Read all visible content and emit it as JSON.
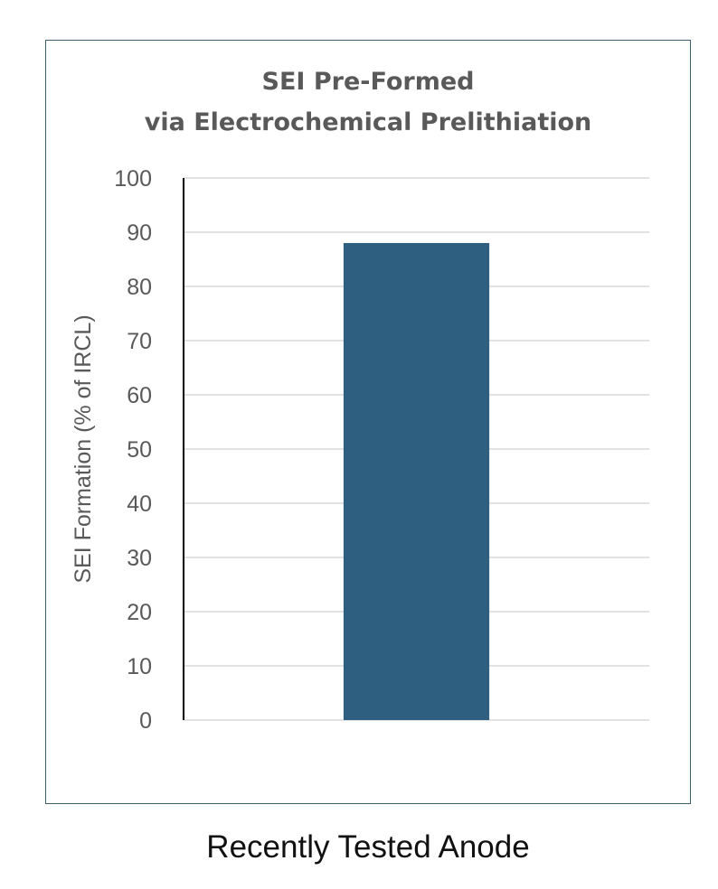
{
  "chart_data": {
    "type": "bar",
    "title_lines": [
      "SEI Pre-Formed",
      "via Electrochemical Prelithiation"
    ],
    "ylabel": "SEI  Formation (% of IRCL)",
    "xlabel": "",
    "categories": [
      ""
    ],
    "values": [
      88
    ],
    "ylim": [
      0,
      100
    ],
    "yticks": [
      "0",
      "10",
      "20",
      "30",
      "40",
      "50",
      "60",
      "70",
      "80",
      "90",
      "100"
    ],
    "grid": true,
    "legend": "none",
    "colors": {
      "bar": "#2e5f80",
      "grid": "#d9d9d9",
      "text": "#595959",
      "frame": "#3c5d6e"
    }
  },
  "caption": "Recently Tested Anode"
}
